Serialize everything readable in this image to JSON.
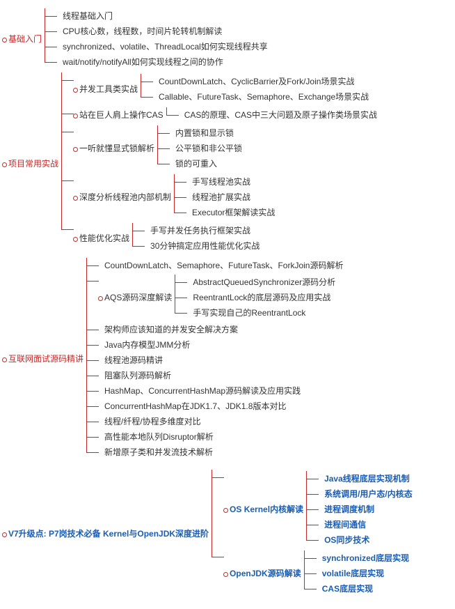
{
  "type": "tree",
  "colors": {
    "line": "#c62828",
    "textRed": "#c62828",
    "textBlue": "#1a5db3",
    "textBlack": "#333333",
    "background": "#ffffff"
  },
  "fontSize": 12,
  "nodes": [
    {
      "label": "基础入门",
      "color": "red",
      "children": [
        {
          "label": "线程基础入门",
          "color": "black"
        },
        {
          "label": "CPU核心数，线程数，时间片轮转机制解读",
          "color": "black"
        },
        {
          "label": "synchronized、volatile、ThreadLocal如何实现线程共享",
          "color": "black"
        },
        {
          "label": "wait/notify/notifyAll如何实现线程之间的协作",
          "color": "black"
        }
      ]
    },
    {
      "label": "项目常用实战",
      "color": "red",
      "children": [
        {
          "label": "并发工具类实战",
          "color": "black",
          "children": [
            {
              "label": "CountDownLatch、CyclicBarrier及Fork/Join场景实战",
              "color": "black"
            },
            {
              "label": "Callable、FutureTask、Semaphore、Exchange场景实战",
              "color": "black"
            }
          ]
        },
        {
          "label": "站在巨人肩上操作CAS",
          "color": "black",
          "children": [
            {
              "label": "CAS的原理、CAS中三大问题及原子操作类场景实战",
              "color": "black"
            }
          ]
        },
        {
          "label": "一听就懂显式锁解析",
          "color": "black",
          "children": [
            {
              "label": "内置锁和显示锁",
              "color": "black"
            },
            {
              "label": "公平锁和非公平锁",
              "color": "black"
            },
            {
              "label": "锁的可重入",
              "color": "black"
            }
          ]
        },
        {
          "label": "深度分析线程池内部机制",
          "color": "black",
          "children": [
            {
              "label": "手写线程池实战",
              "color": "black"
            },
            {
              "label": "线程池扩展实战",
              "color": "black"
            },
            {
              "label": "Executor框架解读实战",
              "color": "black"
            }
          ]
        },
        {
          "label": "性能优化实战",
          "color": "black",
          "children": [
            {
              "label": "手写并发任务执行框架实战",
              "color": "black"
            },
            {
              "label": "30分钟搞定应用性能优化实战",
              "color": "black"
            }
          ]
        }
      ]
    },
    {
      "label": "互联网面试源码精讲",
      "color": "red",
      "children": [
        {
          "label": "CountDownLatch、Semaphore、FutureTask、ForkJoin源码解析",
          "color": "black"
        },
        {
          "label": "AQS源码深度解读",
          "color": "black",
          "children": [
            {
              "label": "AbstractQueuedSynchronizer源码分析",
              "color": "black"
            },
            {
              "label": "ReentrantLock的底层源码及应用实战",
              "color": "black"
            },
            {
              "label": "手写实现自己的ReentrantLock",
              "color": "black"
            }
          ]
        },
        {
          "label": "架构师应该知道的并发安全解决方案",
          "color": "black"
        },
        {
          "label": "Java内存模型JMM分析",
          "color": "black"
        },
        {
          "label": "线程池源码精讲",
          "color": "black"
        },
        {
          "label": "阻塞队列源码解析",
          "color": "black"
        },
        {
          "label": "HashMap、ConcurrentHashMap源码解读及应用实践",
          "color": "black"
        },
        {
          "label": "ConcurrentHashMap在JDK1.7、JDK1.8版本对比",
          "color": "black"
        },
        {
          "label": "线程/纤程/协程多维度对比",
          "color": "black"
        },
        {
          "label": "高性能本地队列Disruptor解析",
          "color": "black"
        },
        {
          "label": "新增原子类和并发流技术解析",
          "color": "black"
        }
      ]
    },
    {
      "label": "V7升级点: P7岗技术必备 Kernel与OpenJDK深度进阶",
      "color": "blue",
      "spaceBefore": true,
      "children": [
        {
          "label": "OS Kernel内核解读",
          "color": "blue",
          "children": [
            {
              "label": "Java线程底层实现机制",
              "color": "blue"
            },
            {
              "label": "系统调用/用户态/内核态",
              "color": "blue"
            },
            {
              "label": "进程调度机制",
              "color": "blue"
            },
            {
              "label": "进程间通信",
              "color": "blue"
            },
            {
              "label": "OS同步技术",
              "color": "blue"
            }
          ]
        },
        {
          "label": "OpenJDK源码解读",
          "color": "blue",
          "children": [
            {
              "label": "synchronized底层实现",
              "color": "blue"
            },
            {
              "label": "volatile底层实现",
              "color": "blue"
            },
            {
              "label": "CAS底层实现",
              "color": "blue"
            }
          ]
        }
      ]
    },
    {
      "label": "",
      "color": "black",
      "empty": true
    }
  ]
}
